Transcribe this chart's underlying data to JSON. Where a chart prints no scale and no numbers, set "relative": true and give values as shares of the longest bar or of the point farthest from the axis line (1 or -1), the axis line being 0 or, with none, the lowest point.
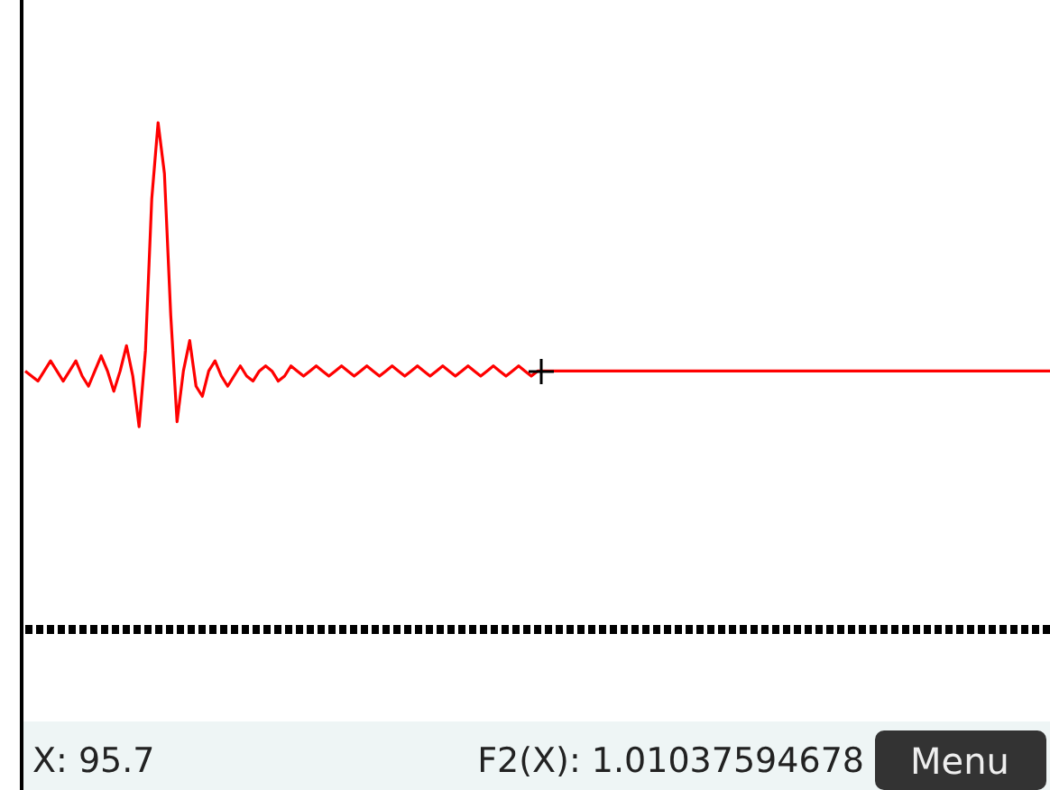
{
  "chart_data": {
    "type": "line",
    "relative": true,
    "categories": [
      null,
      null,
      null,
      null,
      null,
      null,
      null,
      null,
      null,
      null,
      null,
      null,
      null,
      null,
      null,
      null,
      null,
      null,
      null,
      null,
      null,
      null,
      null,
      null,
      null,
      null,
      null,
      null,
      null,
      null,
      null,
      null,
      null,
      null,
      null,
      null,
      null,
      null,
      null,
      null,
      null,
      null,
      null,
      null,
      null,
      null,
      null,
      null,
      null,
      null,
      null,
      null,
      null,
      null,
      null,
      null,
      null,
      null,
      null,
      null,
      null,
      null,
      null,
      null,
      null,
      null,
      null,
      null,
      null,
      null,
      null,
      null,
      null,
      null,
      null,
      null,
      null,
      null,
      null,
      null,
      null,
      null,
      null,
      null,
      null,
      null,
      null,
      null,
      null,
      null,
      null,
      null,
      null,
      null,
      null,
      null,
      null,
      null,
      null,
      null,
      null,
      null,
      null,
      null,
      null,
      null,
      null,
      null,
      null,
      null,
      null,
      null,
      null,
      null,
      null,
      null,
      null,
      null,
      null,
      null,
      null,
      null,
      null,
      null,
      null,
      null,
      null,
      null,
      null,
      null,
      null,
      null,
      null,
      null,
      null,
      null,
      null,
      null,
      null,
      null,
      null,
      null,
      null,
      null,
      null,
      null,
      null,
      null,
      null,
      null,
      null,
      null,
      null,
      null,
      null,
      null,
      null,
      null,
      null,
      null,
      null,
      null,
      null
    ],
    "series": [
      {
        "color": "#ff0000",
        "values": [
          0.51,
          0.5,
          0.49,
          0.51,
          0.53,
          0.51,
          0.49,
          0.51,
          0.53,
          0.5,
          0.48,
          0.51,
          0.54,
          0.51,
          0.47,
          0.51,
          0.56,
          0.5,
          0.4,
          0.55,
          0.85,
          1,
          0.9,
          0.62,
          0.41,
          0.51,
          0.57,
          0.48,
          0.46,
          0.51,
          0.53,
          0.5,
          0.48,
          0.5,
          0.52,
          0.5,
          0.49,
          0.51,
          0.52,
          0.51,
          0.49,
          0.5,
          0.52,
          0.51,
          0.5,
          0.51,
          0.52,
          0.51,
          0.5,
          0.51,
          0.52,
          0.51,
          0.5,
          0.51,
          0.52,
          0.51,
          0.5,
          0.51,
          0.52,
          0.51,
          0.5,
          0.51,
          0.52,
          0.51,
          0.5,
          0.51,
          0.52,
          0.51,
          0.5,
          0.51,
          0.52,
          0.51,
          0.5,
          0.51,
          0.52,
          0.51,
          0.5,
          0.51,
          0.52,
          0.51,
          0.5,
          0.51,
          0.51,
          0.51,
          0.51,
          0.51,
          0.51,
          0.51,
          0.51,
          0.51,
          0.51,
          0.51,
          0.51,
          0.51,
          0.51,
          0.51,
          0.51,
          0.51,
          0.51,
          0.51,
          0.51,
          0.51,
          0.51,
          0.51,
          0.51,
          0.51,
          0.51,
          0.51,
          0.51,
          0.51,
          0.51,
          0.51,
          0.51,
          0.51,
          0.51,
          0.51,
          0.51,
          0.51,
          0.51,
          0.51,
          0.51,
          0.51,
          0.51,
          0.51,
          0.51,
          0.51,
          0.51,
          0.51,
          0.51,
          0.51,
          0.51,
          0.51,
          0.51,
          0.51,
          0.51,
          0.51,
          0.51,
          0.51,
          0.51,
          0.51,
          0.51,
          0.51,
          0.51,
          0.51,
          0.51,
          0.51,
          0.51,
          0.51,
          0.51,
          0.51,
          0.51,
          0.51,
          0.51,
          0.51,
          0.51,
          0.51,
          0.51,
          0.51,
          0.51,
          0.51,
          0.51,
          0.51,
          0.51
        ]
      }
    ],
    "marker": "none",
    "line_style": "solid",
    "annotations": [
      "X: 95.7",
      "F2(X): 1.01037594678",
      "Menu"
    ]
  }
}
